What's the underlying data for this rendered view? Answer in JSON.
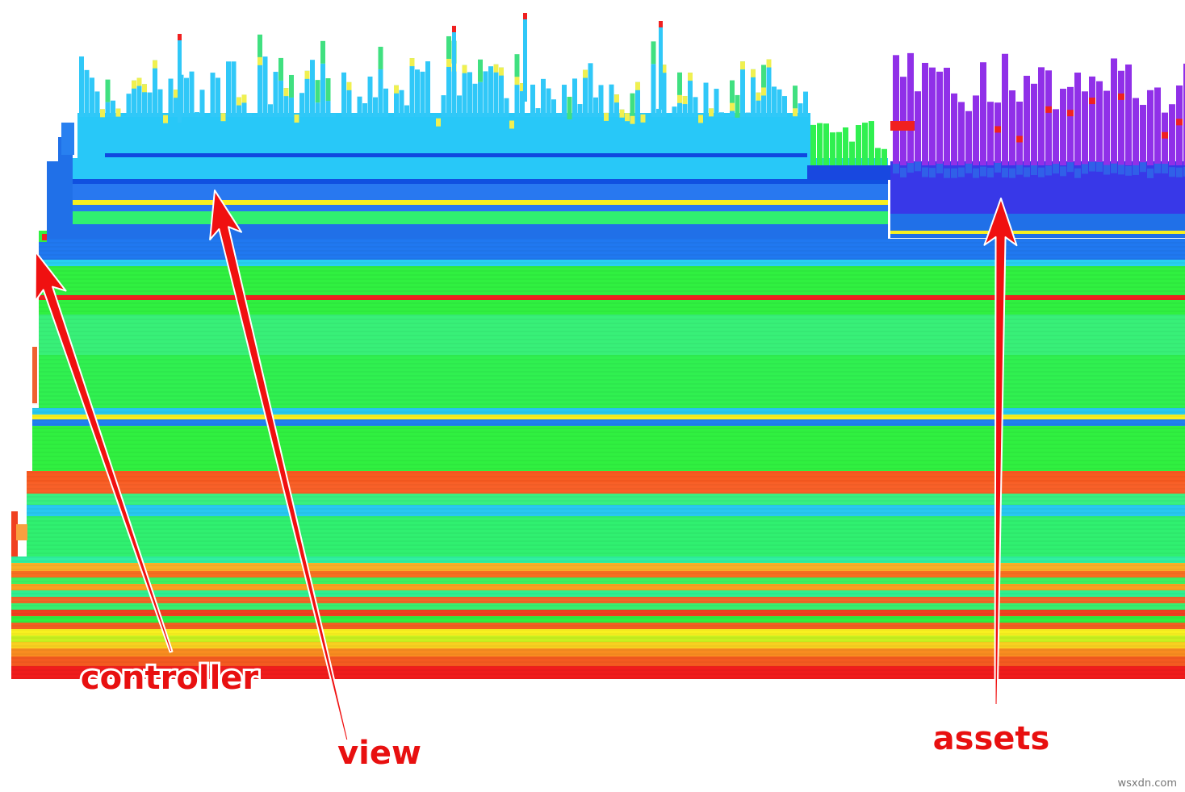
{
  "annotations": {
    "controller": "controller",
    "view": "view",
    "assets": "assets"
  },
  "watermark": "wsxdn.com"
}
